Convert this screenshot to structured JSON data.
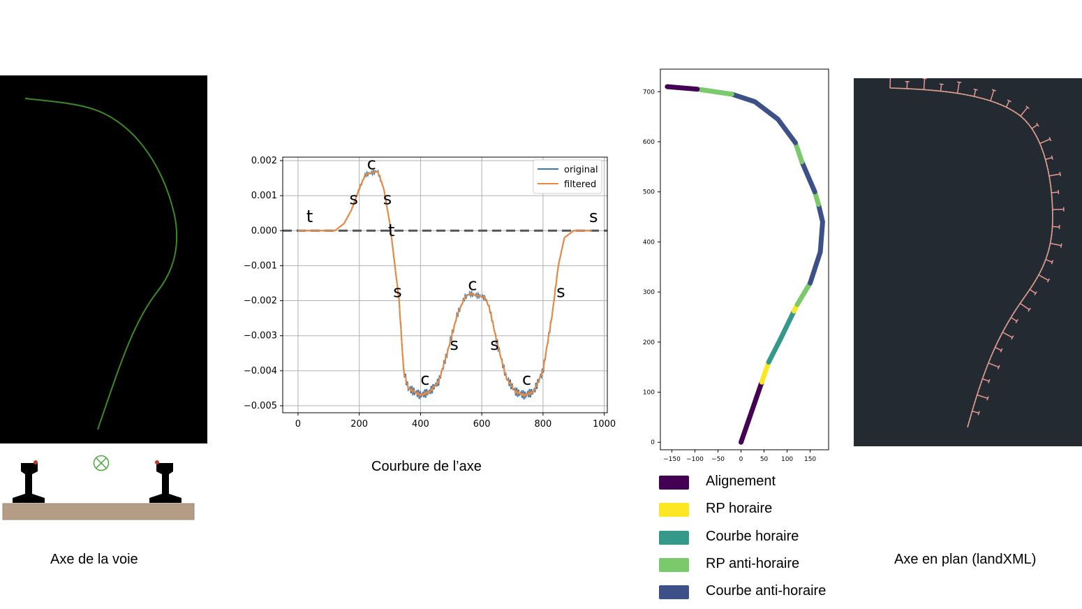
{
  "captions": {
    "axe_voie": "Axe de la voie",
    "courbure": "Courbure de l’axe",
    "axe_plan": "Axe en plan (landXML)"
  },
  "colors": {
    "alignement": "#440154",
    "rp_horaire": "#fde725",
    "courbe_horaire": "#35b779",
    "rp_anti_horaire": "#7ad151",
    "courbe_anti_horaire": "#3b528b",
    "track_green": "#3c8a26",
    "series_original": "#1f77b4",
    "series_filtered": "#ff7f0e"
  },
  "legend": [
    {
      "label": "Alignement",
      "color": "#440154"
    },
    {
      "label": "RP horaire",
      "color": "#fde725"
    },
    {
      "label": "Courbe horaire",
      "color": "#35998a"
    },
    {
      "label": "RP anti-horaire",
      "color": "#7ac96a"
    },
    {
      "label": "Courbe anti-horaire",
      "color": "#3e5088"
    }
  ],
  "chart_data": [
    {
      "type": "line",
      "xlim": [
        -50,
        1010
      ],
      "ylim": [
        -0.0052,
        0.0021
      ],
      "xticks": [
        "0",
        "200",
        "400",
        "600",
        "800",
        "1000"
      ],
      "yticks": [
        "0.002",
        "0.001",
        "0.000",
        "−0.001",
        "−0.002",
        "−0.003",
        "−0.004",
        "−0.005"
      ],
      "grid": true,
      "legend_position": "top-right",
      "series": [
        {
          "name": "original"
        },
        {
          "name": "filtered"
        }
      ],
      "profile_x": [
        0,
        120,
        150,
        175,
        200,
        220,
        260,
        280,
        300,
        330,
        345,
        360,
        400,
        430,
        460,
        490,
        520,
        545,
        560,
        610,
        625,
        650,
        680,
        710,
        740,
        770,
        800,
        830,
        850,
        870,
        900,
        960
      ],
      "profile_y": [
        0,
        0,
        0.0002,
        0.0006,
        0.0012,
        0.0016,
        0.0017,
        0.0012,
        0.0002,
        -0.002,
        -0.004,
        -0.0045,
        -0.0047,
        -0.0046,
        -0.0043,
        -0.0034,
        -0.0024,
        -0.0019,
        -0.0018,
        -0.0019,
        -0.0022,
        -0.0032,
        -0.0042,
        -0.0046,
        -0.0047,
        -0.0046,
        -0.004,
        -0.0024,
        -0.001,
        -0.0002,
        0,
        0
      ],
      "annotations": [
        {
          "text": "c",
          "x": 240,
          "y": 0.00175
        },
        {
          "text": "s",
          "x": 182,
          "y": 0.00075
        },
        {
          "text": "s",
          "x": 292,
          "y": 0.00075
        },
        {
          "text": "t",
          "x": 38,
          "y": 0.00025
        },
        {
          "text": "t",
          "x": 305,
          "y": -0.00015
        },
        {
          "text": "s",
          "x": 325,
          "y": -0.0019
        },
        {
          "text": "c",
          "x": 570,
          "y": -0.0017
        },
        {
          "text": "s",
          "x": 510,
          "y": -0.0034
        },
        {
          "text": "s",
          "x": 642,
          "y": -0.0034
        },
        {
          "text": "c",
          "x": 415,
          "y": -0.0044
        },
        {
          "text": "c",
          "x": 747,
          "y": -0.0044
        },
        {
          "text": "s",
          "x": 858,
          "y": -0.0019
        },
        {
          "text": "s",
          "x": 965,
          "y": 0.00025
        }
      ]
    },
    {
      "type": "line",
      "xlim": [
        -175,
        190
      ],
      "ylim": [
        -15,
        745
      ],
      "xticks": [
        "−150",
        "−100",
        "−50",
        "0",
        "50",
        "100",
        "150"
      ],
      "yticks": [
        "0",
        "100",
        "200",
        "300",
        "400",
        "500",
        "600",
        "700"
      ],
      "grid": false,
      "segments": [
        {
          "type": "Alignement",
          "points": [
            [
              0,
              0
            ],
            [
              45,
              120
            ]
          ]
        },
        {
          "type": "RP horaire",
          "points": [
            [
              45,
              120
            ],
            [
              60,
              160
            ]
          ]
        },
        {
          "type": "Courbe horaire",
          "points": [
            [
              60,
              160
            ],
            [
              85,
              205
            ],
            [
              115,
              262
            ]
          ]
        },
        {
          "type": "RP horaire",
          "points": [
            [
              115,
              262
            ],
            [
              122,
              275
            ]
          ]
        },
        {
          "type": "RP anti-horaire",
          "points": [
            [
              122,
              275
            ],
            [
              150,
              318
            ]
          ]
        },
        {
          "type": "Courbe anti-horaire",
          "points": [
            [
              150,
              318
            ],
            [
              172,
              380
            ],
            [
              177,
              440
            ],
            [
              168,
              475
            ]
          ]
        },
        {
          "type": "RP anti-horaire",
          "points": [
            [
              168,
              475
            ],
            [
              160,
              500
            ]
          ]
        },
        {
          "type": "Courbe anti-horaire",
          "points": [
            [
              160,
              500
            ],
            [
              132,
              560
            ]
          ]
        },
        {
          "type": "RP anti-horaire",
          "points": [
            [
              132,
              560
            ],
            [
              118,
              598
            ]
          ]
        },
        {
          "type": "Courbe anti-horaire",
          "points": [
            [
              118,
              598
            ],
            [
              80,
              645
            ],
            [
              30,
              680
            ],
            [
              -20,
              695
            ]
          ]
        },
        {
          "type": "RP anti-horaire",
          "points": [
            [
              -20,
              695
            ],
            [
              -95,
              705
            ]
          ]
        },
        {
          "type": "Alignement",
          "points": [
            [
              -95,
              705
            ],
            [
              -160,
              710
            ]
          ]
        }
      ]
    }
  ]
}
